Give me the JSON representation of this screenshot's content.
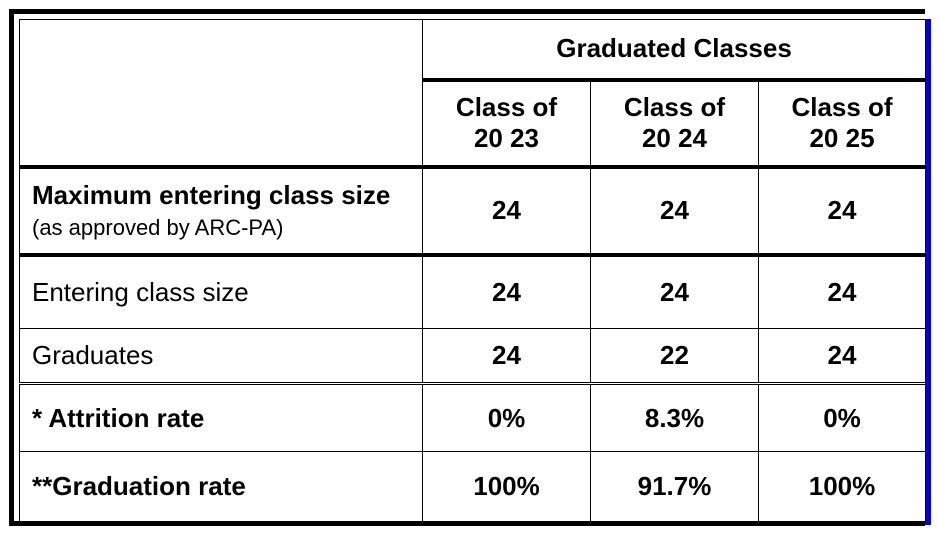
{
  "header": {
    "group_title": "Graduated Classes",
    "classes": [
      {
        "line1": "Class of",
        "line2": "20 23"
      },
      {
        "line1": "Class of",
        "line2": "20 24"
      },
      {
        "line1": "Class of",
        "line2": "20 25"
      }
    ]
  },
  "rows": [
    {
      "label_bold": "Maximum entering class size",
      "label_note": "(as approved by ARC-PA)",
      "values": [
        "24",
        "24",
        "24"
      ]
    },
    {
      "label": "Entering class size",
      "values": [
        "24",
        "24",
        "24"
      ]
    },
    {
      "label": "Graduates",
      "values": [
        "24",
        "22",
        "24"
      ]
    },
    {
      "label": "* Attrition rate",
      "values": [
        "0%",
        "8.3%",
        "0%"
      ]
    },
    {
      "label": "**Graduation rate",
      "values": [
        "100%",
        "91.7%",
        "100%"
      ]
    }
  ],
  "colors": {
    "border": "#000000",
    "accent_edge": "#0000ee"
  }
}
